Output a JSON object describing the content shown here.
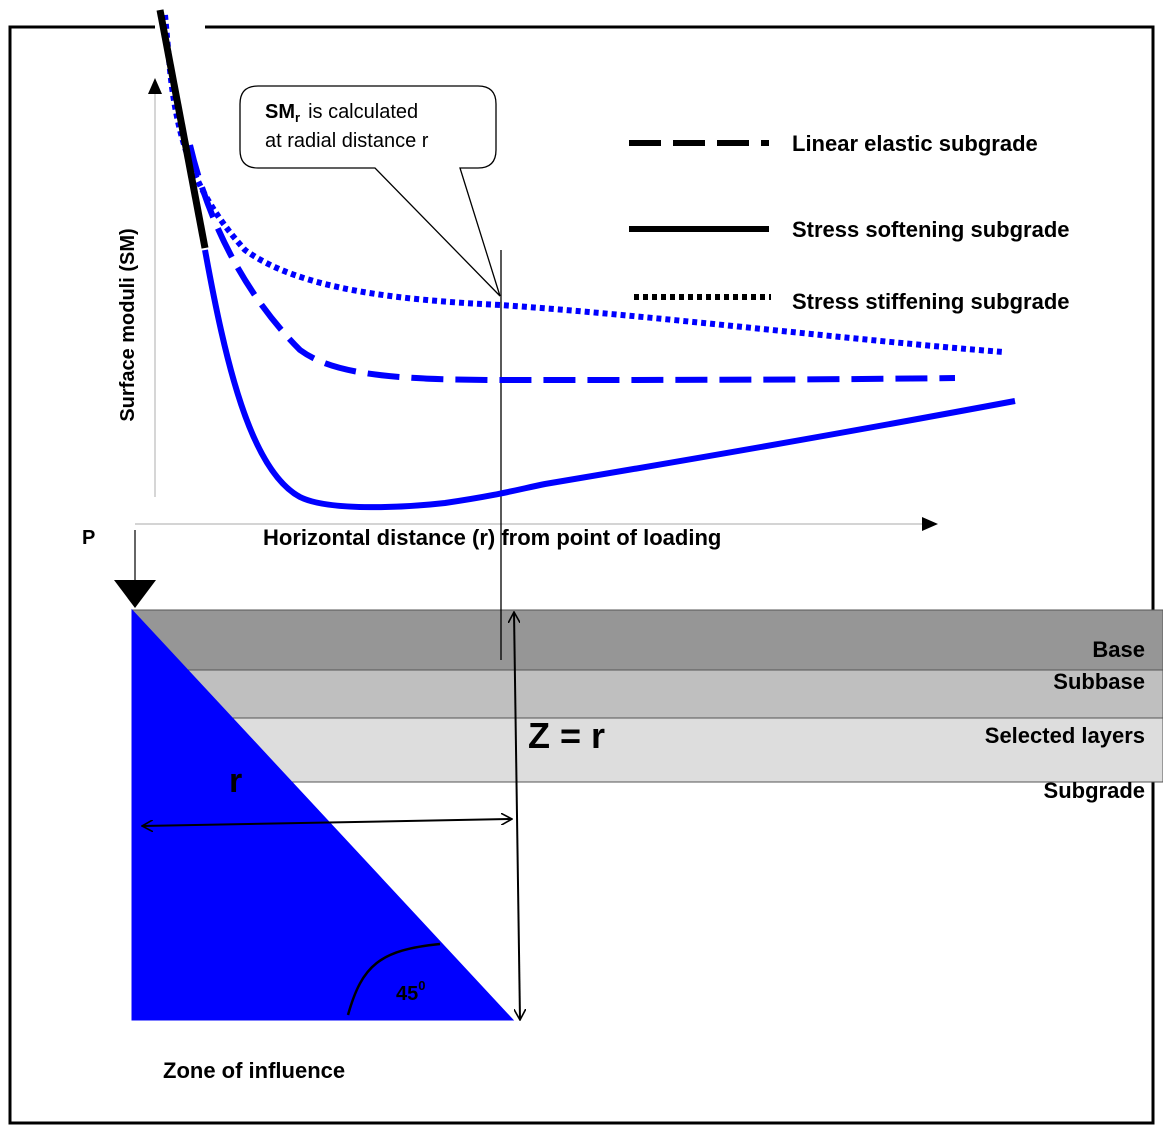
{
  "callout": {
    "line1_bold": "SM",
    "line1_sub": "r",
    "line1_rest": "is calculated",
    "line2": "at radial distance r"
  },
  "legend": [
    {
      "label": "Linear elastic subgrade",
      "style": "dashed",
      "color": "#000000"
    },
    {
      "label": "Stress softening subgrade",
      "style": "solid",
      "color": "#000000"
    },
    {
      "label": "Stress stiffening subgrade",
      "style": "dotted",
      "color": "#000000"
    }
  ],
  "axes": {
    "y_label": "Surface moduli (SM)",
    "x_label": "Horizontal distance (r) from point of loading"
  },
  "load_label": "P",
  "layers": [
    {
      "label": "Base",
      "color": "#969696"
    },
    {
      "label": "Subbase",
      "color": "#bfbfbf"
    },
    {
      "label": "Selected layers",
      "color": "#dddddd"
    },
    {
      "label": "Subgrade",
      "color": "#ffffff"
    }
  ],
  "zone": {
    "r_label": "r",
    "angle_label": "45",
    "angle_sup": "0",
    "z_label": "Z = r",
    "caption": "Zone of influence",
    "color": "#0000ff"
  },
  "curve_color": "#0000ff"
}
